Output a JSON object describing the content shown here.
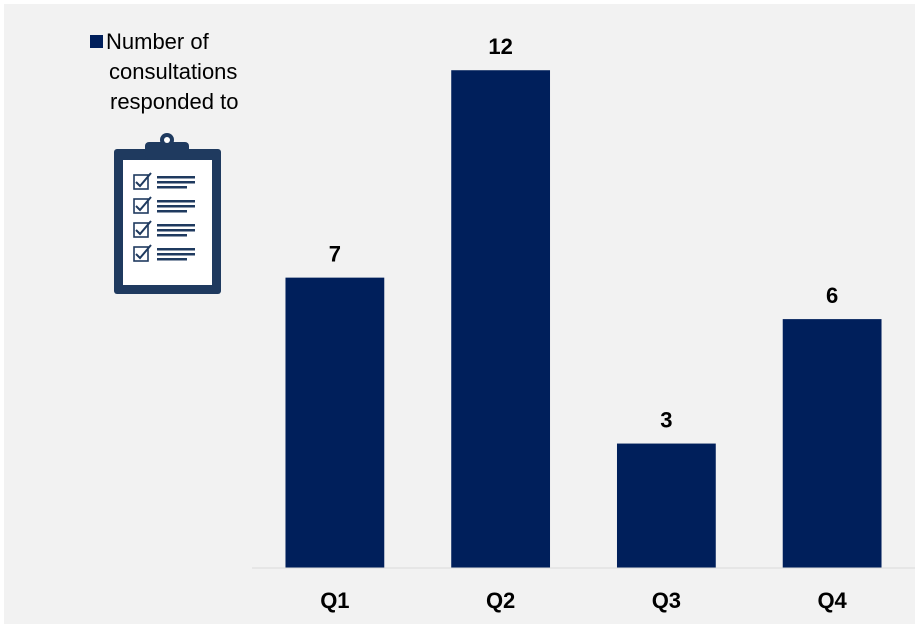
{
  "chart_data": {
    "type": "bar",
    "categories": [
      "Q1",
      "Q2",
      "Q3",
      "Q4"
    ],
    "series": [
      {
        "name": "Number of consultations responded to",
        "values": [
          7,
          12,
          3,
          6
        ]
      }
    ],
    "legend": {
      "lines": [
        "Number of",
        "consultations",
        "responded to"
      ],
      "position": "top-left"
    },
    "ylim": [
      0,
      13.5
    ],
    "grid": false,
    "colors": {
      "bar": "#001f5b",
      "background": "#f2f2f2",
      "axis": "#d9d9d9",
      "icon": "#1f3a5f"
    },
    "icon": "clipboard-checklist-icon"
  }
}
